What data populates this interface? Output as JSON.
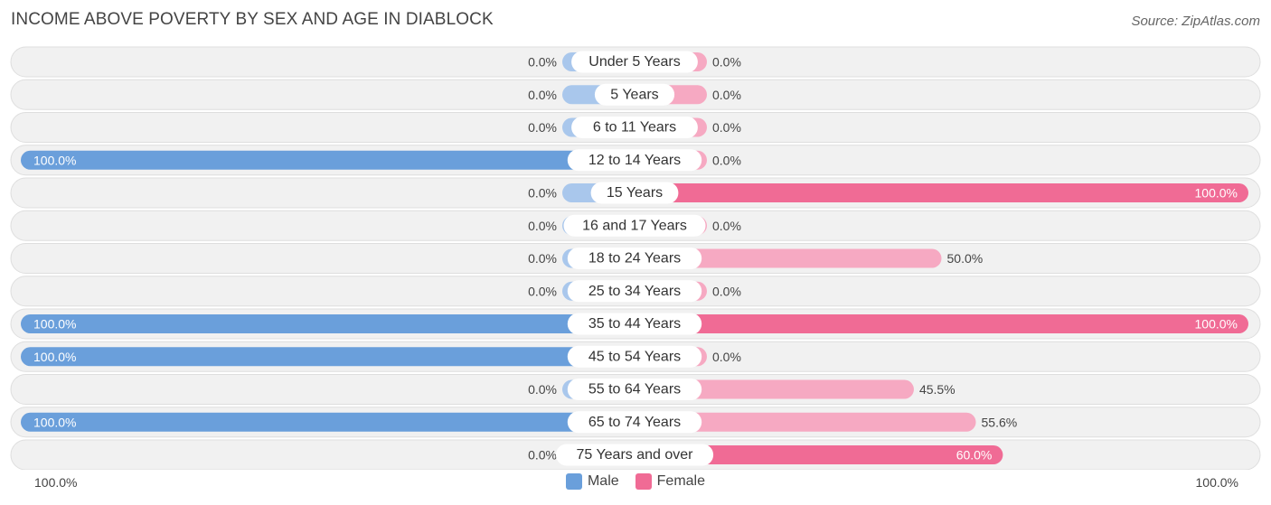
{
  "header": {
    "title": "INCOME ABOVE POVERTY BY SEX AND AGE IN DIABLOCK",
    "source": "Source: ZipAtlas.com"
  },
  "colors": {
    "male_strong": "#6a9fdb",
    "male_light": "#a9c7ec",
    "female_strong": "#f06b95",
    "female_light": "#f6a9c2",
    "row_bg": "#f1f1f1",
    "row_border": "#dedede"
  },
  "axis": {
    "left_label": "100.0%",
    "right_label": "100.0%"
  },
  "legend": {
    "male": "Male",
    "female": "Female"
  },
  "chart_data": {
    "type": "bar",
    "orientation": "horizontal-diverging",
    "title": "INCOME ABOVE POVERTY BY SEX AND AGE IN DIABLOCK",
    "xlim": [
      0,
      100
    ],
    "categories": [
      "Under 5 Years",
      "5 Years",
      "6 to 11 Years",
      "12 to 14 Years",
      "15 Years",
      "16 and 17 Years",
      "18 to 24 Years",
      "25 to 34 Years",
      "35 to 44 Years",
      "45 to 54 Years",
      "55 to 64 Years",
      "65 to 74 Years",
      "75 Years and over"
    ],
    "series": [
      {
        "name": "Male",
        "values": [
          0,
          0,
          0,
          100,
          0,
          0,
          0,
          0,
          100,
          100,
          0,
          100,
          0
        ],
        "labels": [
          "0.0%",
          "0.0%",
          "0.0%",
          "100.0%",
          "0.0%",
          "0.0%",
          "0.0%",
          "0.0%",
          "100.0%",
          "100.0%",
          "0.0%",
          "100.0%",
          "0.0%"
        ]
      },
      {
        "name": "Female",
        "values": [
          0,
          0,
          0,
          0,
          100,
          0,
          50,
          0,
          100,
          0,
          45.5,
          55.6,
          60
        ],
        "labels": [
          "0.0%",
          "0.0%",
          "0.0%",
          "0.0%",
          "100.0%",
          "0.0%",
          "50.0%",
          "0.0%",
          "100.0%",
          "0.0%",
          "45.5%",
          "55.6%",
          "60.0%"
        ]
      }
    ],
    "legend_position": "bottom-center"
  }
}
